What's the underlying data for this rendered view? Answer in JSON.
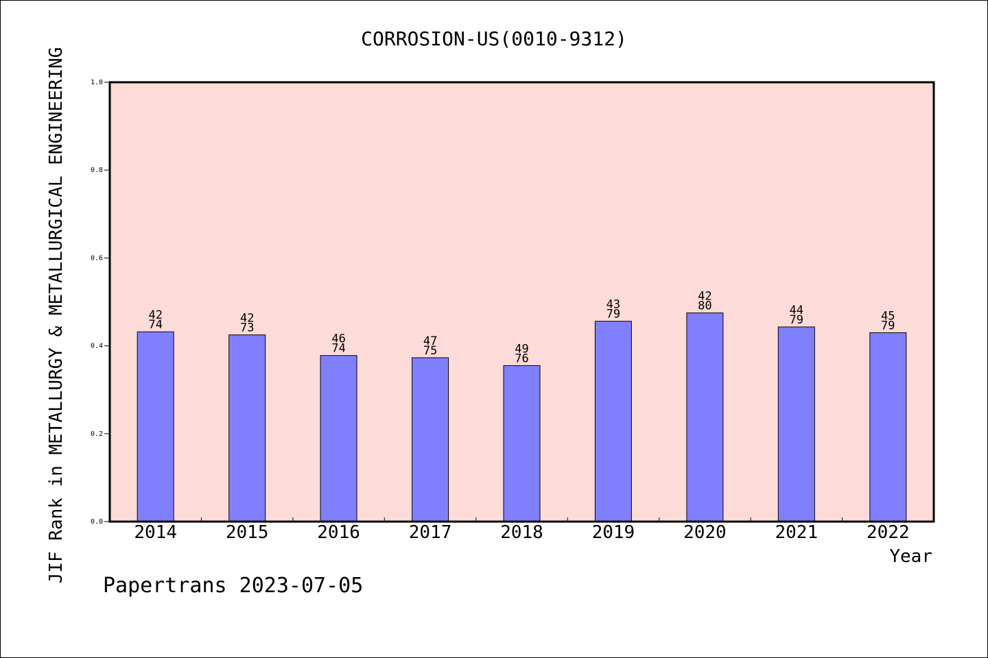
{
  "chart_data": {
    "type": "bar",
    "title": "CORROSION-US(0010-9312)",
    "xlabel": "Year",
    "ylabel": "JIF Rank in METALLURGY & METALLURGICAL ENGINEERING",
    "ylim": [
      0,
      1.0
    ],
    "yticks": [
      "0.0",
      "0.2",
      "0.4",
      "0.6",
      "0.8",
      "1.0"
    ],
    "categories": [
      "2014",
      "2015",
      "2016",
      "2017",
      "2018",
      "2019",
      "2020",
      "2021",
      "2022"
    ],
    "values": [
      0.432,
      0.425,
      0.378,
      0.373,
      0.355,
      0.456,
      0.475,
      0.443,
      0.43
    ],
    "ranks": [
      "42",
      "42",
      "46",
      "47",
      "49",
      "43",
      "42",
      "44",
      "45"
    ],
    "totals": [
      "74",
      "73",
      "74",
      "75",
      "76",
      "79",
      "80",
      "79",
      "79"
    ],
    "grid": false,
    "legend": "none"
  },
  "colors": {
    "plot_background": "#fddbd8",
    "bar_fill": "#8080ff",
    "bar_stroke": "#000000"
  },
  "footer": "Papertrans 2023-07-05"
}
